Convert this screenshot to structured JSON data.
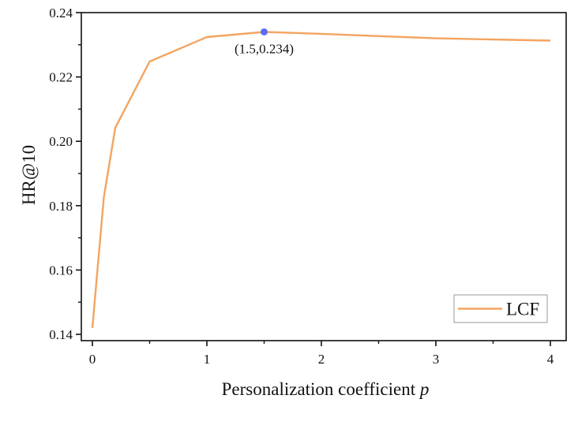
{
  "chart_data": {
    "type": "line",
    "title": "",
    "xlabel": "Personalization coefficient",
    "xlabel_italic_var": "p",
    "ylabel": "HR@10",
    "xlim": [
      -0.1,
      4.15
    ],
    "ylim": [
      0.138,
      0.24
    ],
    "xticks": [
      0,
      1,
      2,
      3,
      4
    ],
    "xtick_labels": [
      "0",
      "1",
      "2",
      "3",
      "4"
    ],
    "xminor_ticks": [
      0.5,
      1.5,
      2.5,
      3.5
    ],
    "yticks": [
      0.14,
      0.16,
      0.18,
      0.2,
      0.22,
      0.24
    ],
    "ytick_labels": [
      "0.14",
      "0.16",
      "0.18",
      "0.20",
      "0.22",
      "0.24"
    ],
    "yminor_ticks": [
      0.15,
      0.17,
      0.19,
      0.21,
      0.23
    ],
    "grid": false,
    "legend_position": "lower right",
    "series": [
      {
        "name": "LCF",
        "color": "#F4A460",
        "x": [
          0,
          0.1,
          0.2,
          0.5,
          1,
          1.5,
          2,
          3,
          4
        ],
        "values": [
          0.142,
          0.1826,
          0.2042,
          0.2248,
          0.2324,
          0.234,
          0.2334,
          0.232,
          0.2313
        ]
      }
    ],
    "annotations": [
      {
        "text": "(1.5,0.234)",
        "x": 1.5,
        "y": 0.234,
        "marker_color": "#5B6CF5"
      }
    ]
  }
}
